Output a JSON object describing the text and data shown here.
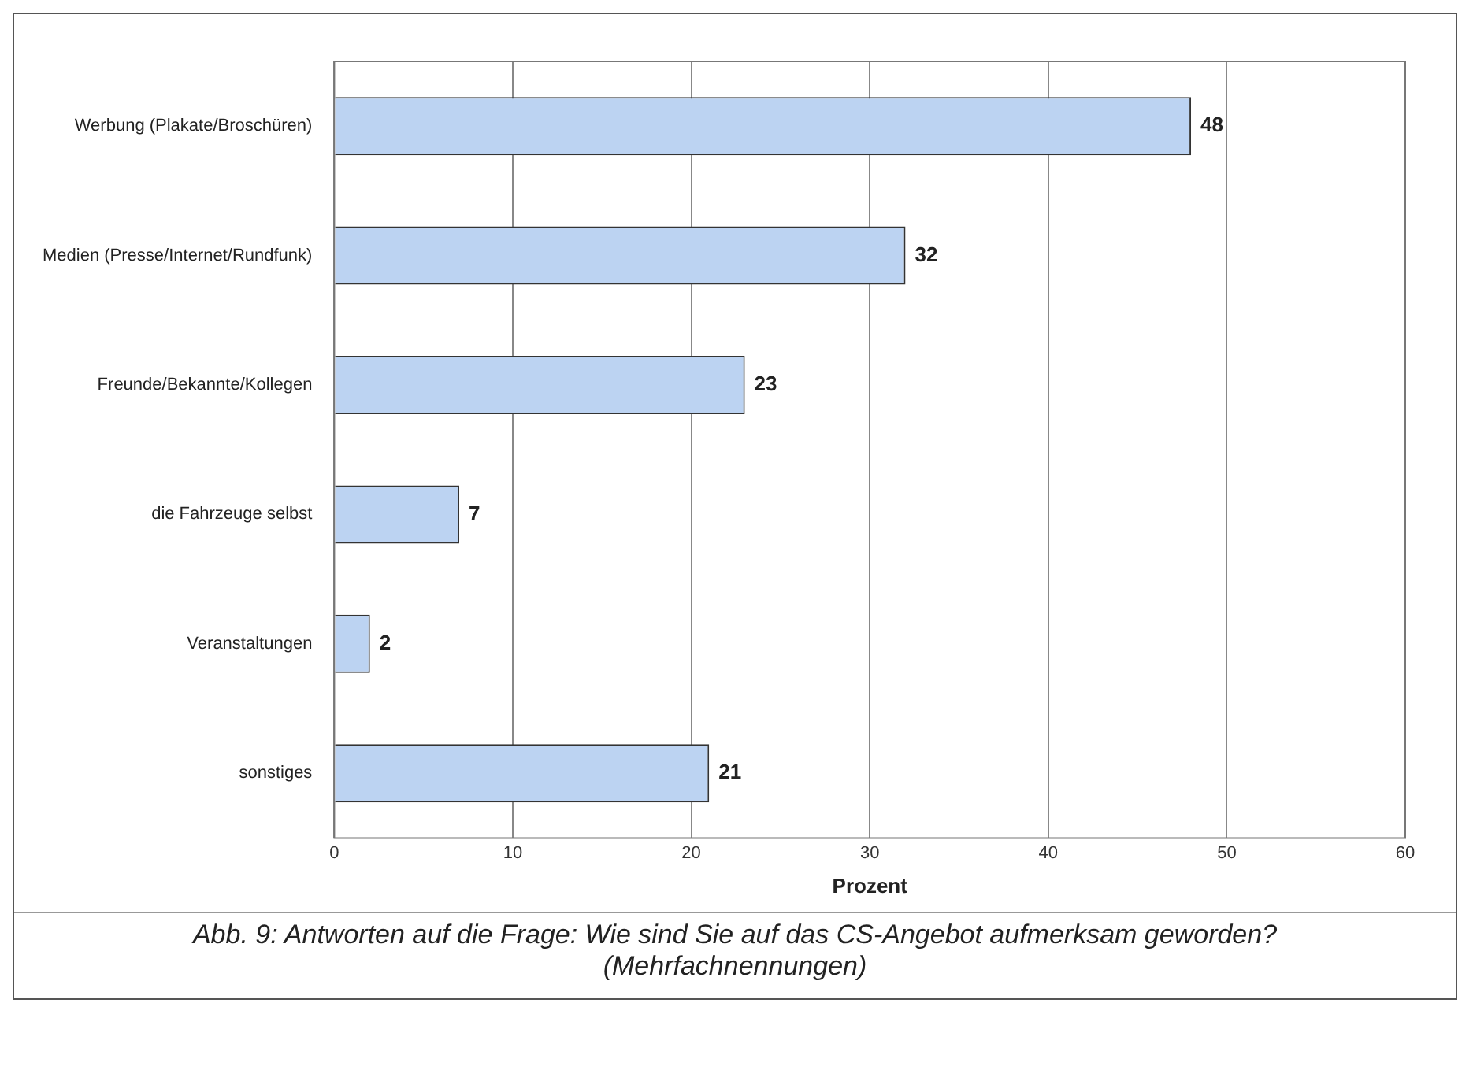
{
  "chart_data": {
    "type": "bar",
    "orientation": "horizontal",
    "categories": [
      "Werbung (Plakate/Broschüren)",
      "Medien (Presse/Internet/Rundfunk)",
      "Freunde/Bekannte/Kollegen",
      "die Fahrzeuge selbst",
      "Veranstaltungen",
      "sonstiges"
    ],
    "values": [
      48,
      32,
      23,
      7,
      2,
      21
    ],
    "color": "#bcd3f2",
    "xlim": [
      0,
      60
    ],
    "xticks": [
      0,
      10,
      20,
      30,
      40,
      50,
      60
    ],
    "xlabel": "Prozent",
    "grid": "x",
    "data_labels": true,
    "annotations": [
      "Abb. 9: Antworten auf die Frage: Wie sind Sie auf das CS-Angebot aufmerksam geworden?",
      "(Mehrfachnennungen)"
    ]
  }
}
